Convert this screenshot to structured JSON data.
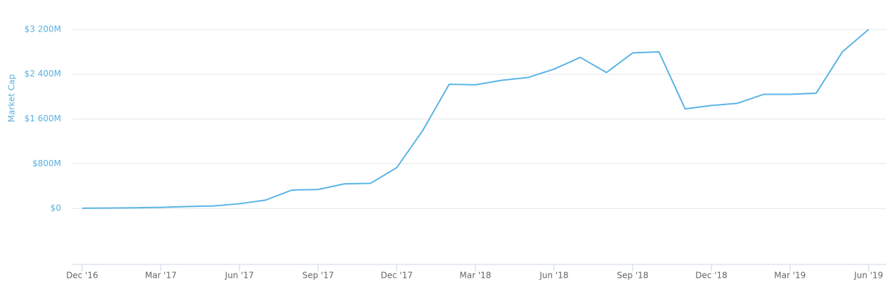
{
  "chart_data": {
    "type": "line",
    "y_label": "Market Cap",
    "categories": [
      "Dec '16",
      null,
      null,
      "Mar '17",
      null,
      null,
      "Jun '17",
      null,
      null,
      "Sep '17",
      null,
      null,
      "Dec '17",
      null,
      null,
      "Mar '18",
      null,
      null,
      "Jun '18",
      null,
      null,
      "Sep '18",
      null,
      null,
      "Dec '18",
      null,
      null,
      "Mar '19",
      null,
      null,
      "Jun '19"
    ],
    "series": [
      {
        "name": "Market Cap",
        "color": "#5ab4e5",
        "values": [
          5,
          8,
          12,
          20,
          35,
          45,
          85,
          150,
          330,
          340,
          440,
          450,
          730,
          1400,
          2220,
          2210,
          2290,
          2340,
          2490,
          2700,
          2430,
          2780,
          2800,
          1780,
          1840,
          1880,
          2040,
          2040,
          2060,
          2800,
          3200
        ]
      }
    ],
    "ylim": [
      -1000,
      3600
    ],
    "yticks": [
      {
        "value": 0,
        "label": "$0"
      },
      {
        "value": 800,
        "label": "$800M"
      },
      {
        "value": 1600,
        "label": "$1 600M"
      },
      {
        "value": 2400,
        "label": "$2 400M"
      },
      {
        "value": 3200,
        "label": "$3 200M"
      }
    ],
    "grid": true
  }
}
